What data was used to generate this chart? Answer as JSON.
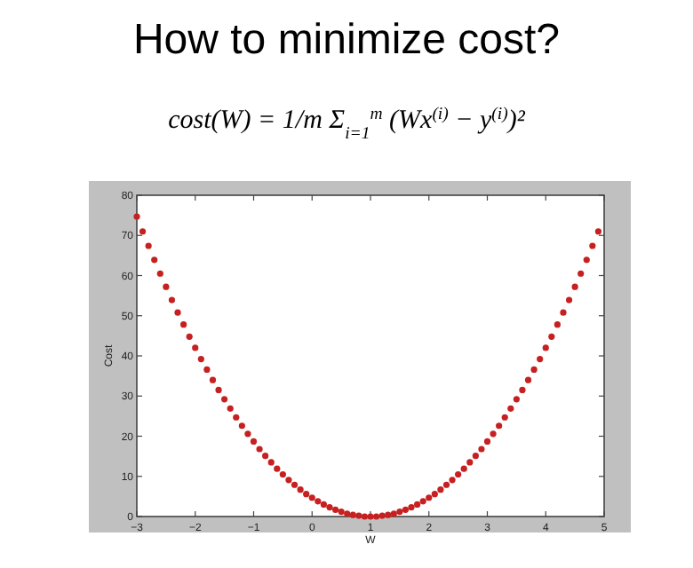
{
  "chart_data": {
    "type": "scatter",
    "title": "How to minimize cost?",
    "subtitle": "cost(W) = 1/m Σ$_{i=1}$$^{m}$ (Wx$^{(i)}$ − y$^{(i)}$)²",
    "xlabel": "W",
    "ylabel": "Cost",
    "x": [
      -3,
      -2.9,
      -2.8,
      -2.7,
      -2.6,
      -2.5,
      -2.4,
      -2.3,
      -2.2,
      -2.1,
      -2,
      -1.9,
      -1.8,
      -1.7,
      -1.6,
      -1.5,
      -1.4,
      -1.3,
      -1.2,
      -1.1,
      -1,
      -0.9,
      -0.8,
      -0.7,
      -0.6,
      -0.5,
      -0.4,
      -0.3,
      -0.2,
      -0.1,
      0,
      0.1,
      0.2,
      0.3,
      0.4,
      0.5,
      0.6,
      0.7,
      0.8,
      0.9,
      1,
      1.1,
      1.2,
      1.3,
      1.4,
      1.5,
      1.6,
      1.7,
      1.8,
      1.9,
      2,
      2.1,
      2.2,
      2.3,
      2.4,
      2.5,
      2.6,
      2.7,
      2.8,
      2.9,
      3,
      3.1,
      3.2,
      3.3,
      3.4,
      3.5,
      3.6,
      3.7,
      3.8,
      3.9,
      4,
      4.1,
      4.2,
      4.3,
      4.4,
      4.5,
      4.6,
      4.7,
      4.8,
      4.9
    ],
    "series": [
      {
        "color": "#c62020",
        "values": [
          74.7,
          71.0,
          67.4,
          63.9,
          60.5,
          57.2,
          53.9,
          50.8,
          47.8,
          44.8,
          42.0,
          39.2,
          36.6,
          34.0,
          31.5,
          29.2,
          26.9,
          24.7,
          22.6,
          20.6,
          18.7,
          16.8,
          15.1,
          13.5,
          11.9,
          10.5,
          9.1,
          7.9,
          6.7,
          5.6,
          4.7,
          3.8,
          3.0,
          2.3,
          1.7,
          1.2,
          0.7,
          0.4,
          0.2,
          0,
          0,
          0,
          0.2,
          0.4,
          0.7,
          1.2,
          1.7,
          2.3,
          3.0,
          3.8,
          4.7,
          5.6,
          6.7,
          7.9,
          9.1,
          10.5,
          11.9,
          13.5,
          15.1,
          16.8,
          18.7,
          20.6,
          22.6,
          24.7,
          26.9,
          29.2,
          31.5,
          34.0,
          36.6,
          39.2,
          42.0,
          44.8,
          47.8,
          50.8,
          53.9,
          57.2,
          60.5,
          63.9,
          67.4,
          71.0
        ]
      }
    ],
    "xlim": [
      -3,
      5
    ],
    "xticks": [
      {
        "value": -3,
        "label": "−3"
      },
      {
        "value": -2,
        "label": "−2"
      },
      {
        "value": -1,
        "label": "−1"
      },
      0,
      1,
      2,
      3,
      4,
      5
    ],
    "ylim": [
      0,
      80
    ],
    "yticks": [
      0,
      10,
      20,
      30,
      40,
      50,
      60,
      70,
      80
    ],
    "marker": "circle",
    "grid": false
  }
}
